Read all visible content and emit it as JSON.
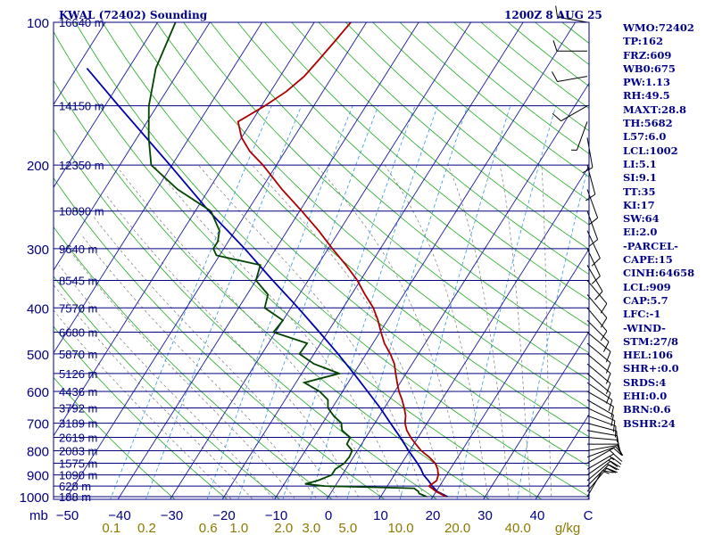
{
  "header": {
    "title": "KWAL (72402) Sounding",
    "datestamp": "1200Z  8 AUG 25"
  },
  "indices": [
    "WMO:72402",
    "TP:162",
    "FRZ:609",
    "WB0:675",
    "PW:1.13",
    "RH:49.5",
    "MAXT:28.8",
    "TH:5682",
    "L57:6.0",
    "LCL:1002",
    "LI:5.1",
    "SI:9.1",
    "TT:35",
    "KI:17",
    "SW:64",
    "EI:2.0",
    "-PARCEL-",
    "CAPE:15",
    "CINH:64658",
    "LCL:909",
    "CAP:5.7",
    "LFC:-1",
    "-WIND-",
    "STM:27/8",
    "HEL:106",
    "SHR+:0.0",
    "SRDS:4",
    "EHI:0.0",
    "BRN:0.6",
    "BSHR:24"
  ],
  "colors": {
    "isobar": "#000080",
    "isotherm": "#1a1aa0",
    "dry_adiabat": "#22aa22",
    "moist_adiabat": "#7a7a7a",
    "mixing_ratio": "#3399dd",
    "temperature": "#aa0000",
    "dewpoint": "#004400",
    "parcel": "#0000aa",
    "wind": "#000000",
    "tick_label_mixing": "#8b7a00"
  },
  "chart_data": {
    "type": "skew-t",
    "pressure_label_unit": "mb",
    "pressure_ticks": [
      100,
      200,
      300,
      400,
      500,
      600,
      700,
      800,
      900,
      1000
    ],
    "height_labels": [
      {
        "p": 100,
        "label": "16640 m"
      },
      {
        "p": 150,
        "label": "14150 m"
      },
      {
        "p": 200,
        "label": "12350 m"
      },
      {
        "p": 250,
        "label": "10890 m"
      },
      {
        "p": 300,
        "label": "9640 m"
      },
      {
        "p": 350,
        "label": "8545 m"
      },
      {
        "p": 400,
        "label": "7570 m"
      },
      {
        "p": 450,
        "label": "6680 m"
      },
      {
        "p": 500,
        "label": "5870 m"
      },
      {
        "p": 550,
        "label": "5126 m"
      },
      {
        "p": 600,
        "label": "4436 m"
      },
      {
        "p": 650,
        "label": "3792 m"
      },
      {
        "p": 700,
        "label": "3189 m"
      },
      {
        "p": 750,
        "label": "2619 m"
      },
      {
        "p": 800,
        "label": "2083 m"
      },
      {
        "p": 850,
        "label": "1575 m"
      },
      {
        "p": 900,
        "label": "1090 m"
      },
      {
        "p": 950,
        "label": "628 m"
      },
      {
        "p": 1000,
        "label": "188 m"
      }
    ],
    "temperature_ticks": [
      -50,
      -40,
      -30,
      -20,
      -10,
      0,
      10,
      20,
      30,
      40
    ],
    "mixing_ratio_unit": "g/kg",
    "mixing_ratio_ticks": [
      "0.1",
      "0.2",
      "0.6",
      "1.0",
      "2.0",
      "3.0",
      "5.0",
      "10.0",
      "20.0",
      "40.0"
    ],
    "temperature_profile": [
      {
        "p": 1000,
        "t": 22.5
      },
      {
        "p": 975,
        "t": 20.0
      },
      {
        "p": 950,
        "t": 18.0
      },
      {
        "p": 925,
        "t": 18.8
      },
      {
        "p": 900,
        "t": 18.4
      },
      {
        "p": 875,
        "t": 17.6
      },
      {
        "p": 850,
        "t": 16.4
      },
      {
        "p": 825,
        "t": 14.5
      },
      {
        "p": 800,
        "t": 12.2
      },
      {
        "p": 775,
        "t": 10.4
      },
      {
        "p": 750,
        "t": 8.6
      },
      {
        "p": 725,
        "t": 7.0
      },
      {
        "p": 700,
        "t": 5.8
      },
      {
        "p": 675,
        "t": 5.0
      },
      {
        "p": 650,
        "t": 3.8
      },
      {
        "p": 625,
        "t": 2.4
      },
      {
        "p": 600,
        "t": 0.8
      },
      {
        "p": 575,
        "t": -0.6
      },
      {
        "p": 550,
        "t": -2.0
      },
      {
        "p": 525,
        "t": -3.4
      },
      {
        "p": 500,
        "t": -5.4
      },
      {
        "p": 475,
        "t": -7.8
      },
      {
        "p": 450,
        "t": -9.8
      },
      {
        "p": 425,
        "t": -11.8
      },
      {
        "p": 400,
        "t": -14.2
      },
      {
        "p": 375,
        "t": -17.4
      },
      {
        "p": 350,
        "t": -20.6
      },
      {
        "p": 325,
        "t": -24.6
      },
      {
        "p": 300,
        "t": -29.2
      },
      {
        "p": 275,
        "t": -34.0
      },
      {
        "p": 250,
        "t": -39.6
      },
      {
        "p": 225,
        "t": -46.0
      },
      {
        "p": 200,
        "t": -52.6
      },
      {
        "p": 187,
        "t": -56.8
      },
      {
        "p": 175,
        "t": -60.0
      },
      {
        "p": 162,
        "t": -62.6
      },
      {
        "p": 150,
        "t": -59.4
      },
      {
        "p": 140,
        "t": -57.0
      },
      {
        "p": 130,
        "t": -55.4
      },
      {
        "p": 120,
        "t": -54.6
      },
      {
        "p": 110,
        "t": -53.8
      },
      {
        "p": 100,
        "t": -53.0
      }
    ],
    "dewpoint_profile": [
      {
        "p": 1000,
        "dp": 18.8
      },
      {
        "p": 985,
        "dp": 17.0
      },
      {
        "p": 975,
        "dp": 16.6
      },
      {
        "p": 960,
        "dp": 15.4
      },
      {
        "p": 950,
        "dp": -2.0
      },
      {
        "p": 940,
        "dp": -6.0
      },
      {
        "p": 925,
        "dp": -4.0
      },
      {
        "p": 900,
        "dp": -2.0
      },
      {
        "p": 875,
        "dp": -2.0
      },
      {
        "p": 850,
        "dp": -1.0
      },
      {
        "p": 825,
        "dp": -0.8
      },
      {
        "p": 800,
        "dp": -1.0
      },
      {
        "p": 775,
        "dp": -2.8
      },
      {
        "p": 750,
        "dp": -3.0
      },
      {
        "p": 725,
        "dp": -5.4
      },
      {
        "p": 700,
        "dp": -6.4
      },
      {
        "p": 675,
        "dp": -8.8
      },
      {
        "p": 650,
        "dp": -10.8
      },
      {
        "p": 625,
        "dp": -11.8
      },
      {
        "p": 600,
        "dp": -14.4
      },
      {
        "p": 575,
        "dp": -18.4
      },
      {
        "p": 550,
        "dp": -12.8
      },
      {
        "p": 525,
        "dp": -18.8
      },
      {
        "p": 500,
        "dp": -22.8
      },
      {
        "p": 475,
        "dp": -22.6
      },
      {
        "p": 450,
        "dp": -30.4
      },
      {
        "p": 425,
        "dp": -30.0
      },
      {
        "p": 400,
        "dp": -35.0
      },
      {
        "p": 375,
        "dp": -36.0
      },
      {
        "p": 350,
        "dp": -40.0
      },
      {
        "p": 325,
        "dp": -41.0
      },
      {
        "p": 310,
        "dp": -50.6
      },
      {
        "p": 300,
        "dp": -52.0
      },
      {
        "p": 290,
        "dp": -52.0
      },
      {
        "p": 275,
        "dp": -53.0
      },
      {
        "p": 250,
        "dp": -57.0
      },
      {
        "p": 225,
        "dp": -66.0
      },
      {
        "p": 200,
        "dp": -74.0
      },
      {
        "p": 175,
        "dp": -77.8
      },
      {
        "p": 150,
        "dp": -81.6
      },
      {
        "p": 125,
        "dp": -84.8
      },
      {
        "p": 100,
        "dp": -86.6
      }
    ],
    "parcel_profile": [
      {
        "p": 1000,
        "t": 22.8
      },
      {
        "p": 975,
        "t": 20.2
      },
      {
        "p": 950,
        "t": 18.6
      },
      {
        "p": 925,
        "t": 17.2
      },
      {
        "p": 900,
        "t": 15.6
      },
      {
        "p": 875,
        "t": 14.4
      },
      {
        "p": 850,
        "t": 13.0
      },
      {
        "p": 800,
        "t": 9.8
      },
      {
        "p": 750,
        "t": 6.6
      },
      {
        "p": 700,
        "t": 3.0
      },
      {
        "p": 650,
        "t": -0.8
      },
      {
        "p": 600,
        "t": -5.2
      },
      {
        "p": 550,
        "t": -10.0
      },
      {
        "p": 500,
        "t": -15.4
      },
      {
        "p": 450,
        "t": -21.6
      },
      {
        "p": 400,
        "t": -28.6
      },
      {
        "p": 350,
        "t": -36.8
      },
      {
        "p": 300,
        "t": -46.0
      },
      {
        "p": 250,
        "t": -57.4
      },
      {
        "p": 200,
        "t": -70.4
      },
      {
        "p": 150,
        "t": -87.4
      },
      {
        "p": 125,
        "t": -98.0
      }
    ],
    "wind_barbs": [
      {
        "p": 1000,
        "dir": 210,
        "spd": 10
      },
      {
        "p": 975,
        "dir": 220,
        "spd": 15
      },
      {
        "p": 950,
        "dir": 225,
        "spd": 20
      },
      {
        "p": 925,
        "dir": 230,
        "spd": 20
      },
      {
        "p": 900,
        "dir": 235,
        "spd": 20
      },
      {
        "p": 875,
        "dir": 240,
        "spd": 15
      },
      {
        "p": 850,
        "dir": 240,
        "spd": 15
      },
      {
        "p": 825,
        "dir": 250,
        "spd": 10
      },
      {
        "p": 800,
        "dir": 260,
        "spd": 10
      },
      {
        "p": 775,
        "dir": 270,
        "spd": 10
      },
      {
        "p": 750,
        "dir": 275,
        "spd": 10
      },
      {
        "p": 725,
        "dir": 280,
        "spd": 10
      },
      {
        "p": 700,
        "dir": 285,
        "spd": 10
      },
      {
        "p": 675,
        "dir": 290,
        "spd": 10
      },
      {
        "p": 650,
        "dir": 295,
        "spd": 10
      },
      {
        "p": 625,
        "dir": 300,
        "spd": 10
      },
      {
        "p": 600,
        "dir": 300,
        "spd": 10
      },
      {
        "p": 575,
        "dir": 305,
        "spd": 10
      },
      {
        "p": 550,
        "dir": 310,
        "spd": 10
      },
      {
        "p": 525,
        "dir": 310,
        "spd": 10
      },
      {
        "p": 500,
        "dir": 310,
        "spd": 10
      },
      {
        "p": 475,
        "dir": 310,
        "spd": 10
      },
      {
        "p": 450,
        "dir": 310,
        "spd": 10
      },
      {
        "p": 425,
        "dir": 315,
        "spd": 10
      },
      {
        "p": 400,
        "dir": 320,
        "spd": 10
      },
      {
        "p": 375,
        "dir": 320,
        "spd": 10
      },
      {
        "p": 350,
        "dir": 320,
        "spd": 10
      },
      {
        "p": 325,
        "dir": 330,
        "spd": 10
      },
      {
        "p": 300,
        "dir": 335,
        "spd": 10
      },
      {
        "p": 275,
        "dir": 335,
        "spd": 10
      },
      {
        "p": 250,
        "dir": 340,
        "spd": 10
      },
      {
        "p": 225,
        "dir": 340,
        "spd": 10
      },
      {
        "p": 200,
        "dir": 345,
        "spd": 10
      },
      {
        "p": 175,
        "dir": 350,
        "spd": 10
      },
      {
        "p": 162,
        "dir": 20,
        "spd": 5
      },
      {
        "p": 150,
        "dir": 60,
        "spd": 10
      },
      {
        "p": 130,
        "dir": 80,
        "spd": 10
      },
      {
        "p": 115,
        "dir": 90,
        "spd": 10
      },
      {
        "p": 100,
        "dir": 100,
        "spd": 15
      }
    ]
  }
}
